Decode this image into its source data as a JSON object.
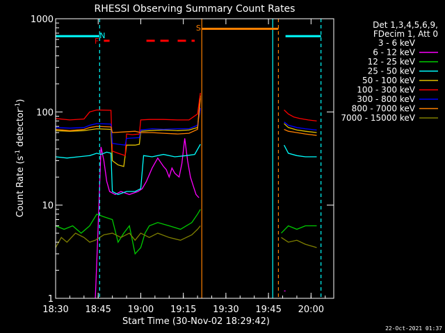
{
  "chart_data": {
    "type": "line",
    "title": "RHESSI Observing Summary Count Rates",
    "xlabel": "Start Time (30-Nov-02 18:29:42)",
    "ylabel_main": "Count Rate (s",
    "ylabel_sup": "-1",
    "ylabel_end": " detector",
    "ylabel_sup2": "-1",
    "ylabel_close": ")",
    "y_scale": "log",
    "ylim": [
      1,
      1000
    ],
    "xlim_minutes": [
      0,
      98
    ],
    "x_ticks": [
      {
        "m": 0,
        "label": "18:30"
      },
      {
        "m": 15,
        "label": "18:45"
      },
      {
        "m": 30,
        "label": "19:00"
      },
      {
        "m": 45,
        "label": "19:15"
      },
      {
        "m": 60,
        "label": "19:30"
      },
      {
        "m": 75,
        "label": "19:45"
      },
      {
        "m": 90,
        "label": "20:00"
      }
    ],
    "y_ticks": [
      {
        "v": 1,
        "label": "1"
      },
      {
        "v": 10,
        "label": "10"
      },
      {
        "v": 100,
        "label": "100"
      },
      {
        "v": 1000,
        "label": "1000"
      }
    ],
    "legend": {
      "placement": "top-right",
      "header1": "Det 1,3,4,5,6,9,",
      "header2": "FDecim 1, Att 0"
    },
    "series": [
      {
        "name": "3 - 6 keV",
        "color": "#000000",
        "segments": [
          [
            [
              15.5,
              1
            ],
            [
              16.2,
              45
            ],
            [
              17,
              38
            ],
            [
              18,
              22
            ],
            [
              19,
              17
            ],
            [
              20.5,
              15
            ],
            [
              23,
              14
            ],
            [
              26,
              15
            ],
            [
              29,
              15
            ],
            [
              30.5,
              17
            ],
            [
              32,
              19
            ],
            [
              34,
              26
            ],
            [
              36,
              38
            ],
            [
              38,
              30
            ],
            [
              39,
              35
            ],
            [
              40,
              25
            ],
            [
              41,
              40
            ],
            [
              42,
              28
            ],
            [
              43.5,
              22
            ],
            [
              44.5,
              30
            ],
            [
              45.5,
              50
            ],
            [
              46.5,
              32
            ],
            [
              47.5,
              25
            ],
            [
              48.5,
              20
            ],
            [
              49.5,
              17
            ],
            [
              50.5,
              15
            ]
          ],
          [
            [
              80.5,
              60
            ],
            [
              82,
              75
            ],
            [
              85,
              70
            ],
            [
              88,
              68
            ],
            [
              92,
              65
            ]
          ]
        ]
      },
      {
        "name": "6 - 12 keV",
        "color": "#ff00ff",
        "segments": [
          [
            [
              14,
              1
            ],
            [
              15,
              6
            ],
            [
              16,
              42
            ],
            [
              17,
              30
            ],
            [
              18,
              18
            ],
            [
              19,
              14
            ],
            [
              21,
              13
            ],
            [
              23,
              14
            ],
            [
              26,
              13
            ],
            [
              29,
              14
            ],
            [
              30.5,
              15
            ],
            [
              32,
              18
            ],
            [
              34,
              25
            ],
            [
              36,
              32
            ],
            [
              38,
              26
            ],
            [
              39,
              24
            ],
            [
              40,
              20
            ],
            [
              41,
              25
            ],
            [
              42,
              22
            ],
            [
              43.5,
              20
            ],
            [
              44.5,
              28
            ],
            [
              45.5,
              52
            ],
            [
              46.5,
              30
            ],
            [
              47.5,
              20
            ],
            [
              48.5,
              16
            ],
            [
              49.5,
              13
            ],
            [
              50.5,
              12
            ]
          ],
          [
            [
              80.5,
              1.2
            ],
            [
              81,
              1.2
            ]
          ]
        ]
      },
      {
        "name": "12 - 25 keV",
        "color": "#00cc00",
        "segments": [
          [
            [
              0,
              6
            ],
            [
              3,
              5.5
            ],
            [
              6,
              6
            ],
            [
              9,
              5
            ],
            [
              12,
              6
            ],
            [
              14.5,
              8
            ],
            [
              17,
              7.5
            ],
            [
              20,
              7
            ],
            [
              22,
              4
            ],
            [
              24,
              5
            ],
            [
              26,
              6
            ],
            [
              28,
              3
            ],
            [
              30,
              3.5
            ],
            [
              31.5,
              5
            ],
            [
              33,
              6
            ],
            [
              36,
              6.5
            ],
            [
              40,
              6
            ],
            [
              44,
              5.5
            ],
            [
              48,
              6.5
            ],
            [
              50,
              8
            ],
            [
              51,
              9
            ]
          ],
          [
            [
              79.5,
              5
            ],
            [
              82,
              6
            ],
            [
              85,
              5.5
            ],
            [
              88,
              6
            ],
            [
              92,
              6
            ]
          ]
        ]
      },
      {
        "name": "25 - 50 keV",
        "color": "#00ffff",
        "segments": [
          [
            [
              0,
              33
            ],
            [
              4,
              32
            ],
            [
              8,
              33
            ],
            [
              12,
              34
            ],
            [
              14.5,
              36
            ],
            [
              16,
              35
            ],
            [
              18,
              37
            ],
            [
              19.5,
              36
            ],
            [
              20,
              14
            ],
            [
              22,
              13
            ],
            [
              25,
              14
            ],
            [
              28,
              14
            ],
            [
              30,
              15
            ],
            [
              31,
              34
            ],
            [
              34,
              33
            ],
            [
              38,
              35
            ],
            [
              42,
              33
            ],
            [
              46,
              34
            ],
            [
              49,
              35
            ],
            [
              51,
              45
            ]
          ],
          [
            [
              80.5,
              44
            ],
            [
              82,
              36
            ],
            [
              85,
              34
            ],
            [
              88,
              33
            ],
            [
              92,
              33
            ]
          ]
        ]
      },
      {
        "name": "50 - 100 keV",
        "color": "#e0c000",
        "segments": [
          [
            [
              0,
              63
            ],
            [
              5,
              62
            ],
            [
              10,
              63
            ],
            [
              14.5,
              66
            ],
            [
              19.5,
              65
            ],
            [
              20,
              30
            ],
            [
              22,
              27
            ],
            [
              24,
              26
            ],
            [
              25,
              44
            ],
            [
              28,
              44
            ],
            [
              29.5,
              45
            ],
            [
              30,
              62
            ],
            [
              33,
              63
            ],
            [
              38,
              64
            ],
            [
              43,
              63
            ],
            [
              47,
              64
            ],
            [
              50,
              68
            ],
            [
              51,
              150
            ]
          ],
          [
            [
              80.5,
              75
            ],
            [
              82,
              68
            ],
            [
              85,
              64
            ],
            [
              88,
              62
            ],
            [
              92,
              60
            ]
          ]
        ]
      },
      {
        "name": "100 - 300 keV",
        "color": "#ff0000",
        "segments": [
          [
            [
              0,
              85
            ],
            [
              5,
              82
            ],
            [
              10,
              84
            ],
            [
              12,
              100
            ],
            [
              14.5,
              105
            ],
            [
              19.5,
              104
            ],
            [
              20,
              38
            ],
            [
              22,
              36
            ],
            [
              24.5,
              34
            ],
            [
              25,
              58
            ],
            [
              27,
              57
            ],
            [
              29.5,
              58
            ],
            [
              30,
              82
            ],
            [
              33,
              83
            ],
            [
              38,
              83
            ],
            [
              43,
              82
            ],
            [
              47,
              82
            ],
            [
              50,
              95
            ],
            [
              51,
              160
            ]
          ],
          [
            [
              80.5,
              105
            ],
            [
              82,
              95
            ],
            [
              84,
              88
            ],
            [
              86,
              85
            ],
            [
              89,
              82
            ],
            [
              92,
              80
            ]
          ]
        ]
      },
      {
        "name": "300 - 800 keV",
        "color": "#0000ff",
        "segments": [
          [
            [
              0,
              68
            ],
            [
              5,
              67
            ],
            [
              10,
              68
            ],
            [
              12,
              72
            ],
            [
              14.5,
              75
            ],
            [
              19.5,
              74
            ],
            [
              20,
              46
            ],
            [
              22,
              45
            ],
            [
              24.5,
              44
            ],
            [
              25,
              52
            ],
            [
              29.5,
              53
            ],
            [
              30,
              64
            ],
            [
              34,
              66
            ],
            [
              38,
              65
            ],
            [
              43,
              66
            ],
            [
              47,
              66
            ],
            [
              50,
              72
            ],
            [
              51,
              110
            ]
          ],
          [
            [
              80.5,
              78
            ],
            [
              82,
              72
            ],
            [
              85,
              68
            ],
            [
              88,
              66
            ],
            [
              92,
              64
            ]
          ]
        ]
      },
      {
        "name": "800 - 7000 keV",
        "color": "#ff8000",
        "segments": [
          [
            [
              0,
              65
            ],
            [
              5,
              63
            ],
            [
              10,
              65
            ],
            [
              12,
              68
            ],
            [
              14.5,
              70
            ],
            [
              19.5,
              69
            ],
            [
              20,
              60
            ],
            [
              24,
              61
            ],
            [
              28,
              62
            ],
            [
              30,
              60
            ],
            [
              34,
              60
            ],
            [
              38,
              59
            ],
            [
              43,
              58
            ],
            [
              47,
              59
            ],
            [
              50,
              65
            ],
            [
              51,
              140
            ]
          ],
          [
            [
              80.5,
              65
            ],
            [
              82,
              62
            ],
            [
              85,
              60
            ],
            [
              88,
              58
            ],
            [
              92,
              56
            ]
          ]
        ]
      },
      {
        "name": "7000 - 15000 keV",
        "color": "#808000",
        "segments": [
          [
            [
              0,
              3.5
            ],
            [
              2,
              4.5
            ],
            [
              4,
              4
            ],
            [
              7,
              5
            ],
            [
              10,
              4.5
            ],
            [
              12,
              4
            ],
            [
              14,
              4.2
            ],
            [
              17,
              4.8
            ],
            [
              20,
              5
            ],
            [
              23,
              4.5
            ],
            [
              26,
              5
            ],
            [
              28,
              4.2
            ],
            [
              30,
              5
            ],
            [
              33,
              4.5
            ],
            [
              36,
              5
            ],
            [
              40,
              4.5
            ],
            [
              44,
              4.2
            ],
            [
              48,
              4.8
            ],
            [
              50,
              5.5
            ],
            [
              51,
              6
            ]
          ],
          [
            [
              79.5,
              4.5
            ],
            [
              82,
              4
            ],
            [
              85,
              4.2
            ],
            [
              88,
              3.8
            ],
            [
              92,
              3.5
            ]
          ]
        ]
      }
    ],
    "vlines": [
      {
        "m": 15.5,
        "color": "#00ffff",
        "style": "dashed"
      },
      {
        "m": 51.5,
        "color": "#ff8000",
        "style": "solid"
      },
      {
        "m": 76.5,
        "color": "#00ffff",
        "style": "solid"
      },
      {
        "m": 78.5,
        "color": "#ff8000",
        "style": "dashed"
      },
      {
        "m": 93.5,
        "color": "#00ffff",
        "style": "dashed"
      }
    ],
    "bars": [
      {
        "m0": 0,
        "m1": 15.5,
        "v": 650,
        "color": "#00ffff",
        "style": "solid"
      },
      {
        "m0": 17,
        "m1": 19,
        "v": 580,
        "color": "#ff0000",
        "style": "solid"
      },
      {
        "m0": 32,
        "m1": 40,
        "v": 580,
        "color": "#ff0000",
        "style": "dashed"
      },
      {
        "m0": 43,
        "m1": 49,
        "v": 580,
        "color": "#ff0000",
        "style": "dashed"
      },
      {
        "m0": 51.5,
        "m1": 78.5,
        "v": 780,
        "color": "#ff8000",
        "style": "solid"
      },
      {
        "m0": 81,
        "m1": 93.5,
        "v": 650,
        "color": "#00ffff",
        "style": "solid"
      }
    ],
    "flags": [
      {
        "m": 16.5,
        "v": 660,
        "text": "N",
        "color": "#00ffff"
      },
      {
        "m": 14.5,
        "v": 580,
        "text": "F",
        "color": "#ff0000"
      },
      {
        "m": 50.3,
        "v": 800,
        "text": "S",
        "color": "#ff8000"
      }
    ]
  },
  "footer": {
    "date_stamp": "22-Oct-2021 01:37"
  }
}
